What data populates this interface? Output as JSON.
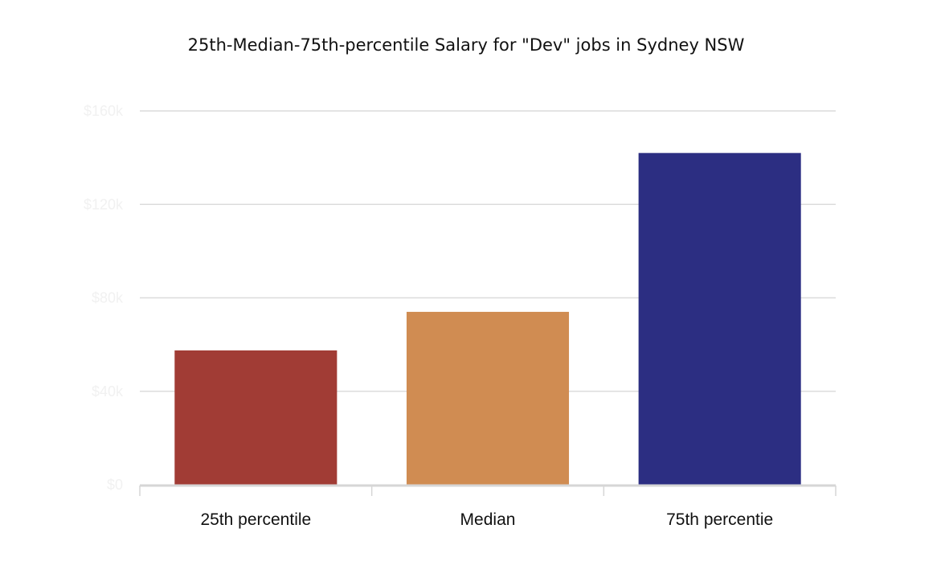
{
  "chart_data": {
    "type": "bar",
    "title": "25th-Median-75th-percentile Salary for \"Dev\" jobs in Sydney NSW",
    "xlabel": "",
    "ylabel": "",
    "categories": [
      "25th percentile",
      "Median",
      "75th percentie"
    ],
    "values": [
      57500,
      74000,
      142000
    ],
    "colors": [
      "#a13c35",
      "#d08c52",
      "#2c2e82"
    ],
    "ylim": [
      0,
      160000
    ],
    "yticks": [
      0,
      40000,
      80000,
      120000,
      160000
    ],
    "ytick_labels": [
      "$0",
      "$40k",
      "$80k",
      "$120k",
      "$160k"
    ],
    "grid": true,
    "legend": "none"
  }
}
